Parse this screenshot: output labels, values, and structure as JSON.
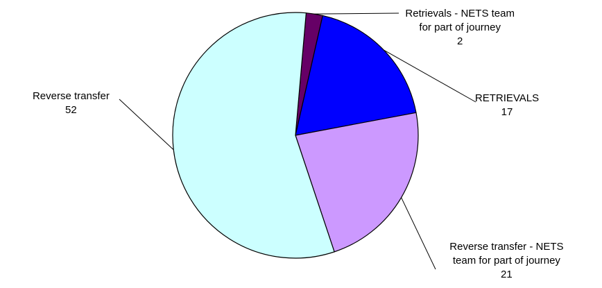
{
  "chart_data": {
    "type": "pie",
    "title": "",
    "slices": [
      {
        "label_lines": [
          "Retrievals - NETS team",
          "for part of journey"
        ],
        "value": 2,
        "value_text": "2",
        "color": "#660066"
      },
      {
        "label_lines": [
          "RETRIEVALS"
        ],
        "value": 17,
        "value_text": "17",
        "color": "#0000ff"
      },
      {
        "label_lines": [
          "Reverse transfer - NETS",
          "team for part of journey"
        ],
        "value": 21,
        "value_text": "21",
        "color": "#cc99ff"
      },
      {
        "label_lines": [
          "Reverse transfer"
        ],
        "value": 52,
        "value_text": "52",
        "color": "#ccffff"
      }
    ],
    "legend": "none",
    "label_position": "outside-with-leader-lines"
  }
}
